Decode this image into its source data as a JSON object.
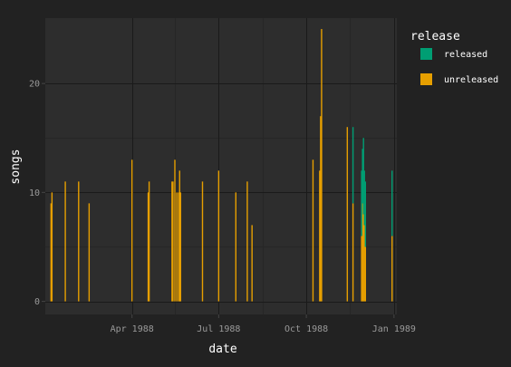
{
  "chart_data": {
    "type": "bar",
    "stacked": true,
    "xlabel": "date",
    "ylabel": "songs",
    "x_axis_type": "date",
    "xlim": [
      "1988-01-01",
      "1989-01-04"
    ],
    "ylim": [
      -1.2,
      26
    ],
    "x_ticks": [
      {
        "date": "1988-04-01",
        "label": "Apr 1988"
      },
      {
        "date": "1988-07-01",
        "label": "Jul 1988"
      },
      {
        "date": "1988-10-01",
        "label": "Oct 1988"
      },
      {
        "date": "1989-01-01",
        "label": "Jan 1989"
      }
    ],
    "y_ticks": [
      {
        "value": 0,
        "label": "0"
      },
      {
        "value": 10,
        "label": "10"
      },
      {
        "value": 20,
        "label": "20"
      }
    ],
    "grid": true,
    "legend": {
      "title": "release",
      "position": "right",
      "entries": [
        {
          "key": "released",
          "label": "released",
          "color": "#009E73"
        },
        {
          "key": "unreleased",
          "label": "unreleased",
          "color": "#E69F00"
        }
      ]
    },
    "colors": {
      "page_background": "#222222",
      "panel_background": "#2d2d2d",
      "grid_major": "#1a1a1a",
      "grid_minor": "#262626",
      "text": "#ffffff",
      "tick_text": "#9a9a9a"
    },
    "series": [
      {
        "name": "unreleased",
        "points": [
          {
            "date": "1988-01-07",
            "value": 9
          },
          {
            "date": "1988-01-08",
            "value": 10
          },
          {
            "date": "1988-01-22",
            "value": 11
          },
          {
            "date": "1988-02-05",
            "value": 11
          },
          {
            "date": "1988-02-16",
            "value": 9
          },
          {
            "date": "1988-04-01",
            "value": 13
          },
          {
            "date": "1988-04-18",
            "value": 10
          },
          {
            "date": "1988-04-19",
            "value": 11
          },
          {
            "date": "1988-05-13",
            "value": 11
          },
          {
            "date": "1988-05-14",
            "value": 11
          },
          {
            "date": "1988-05-16",
            "value": 13
          },
          {
            "date": "1988-05-18",
            "value": 10
          },
          {
            "date": "1988-05-20",
            "value": 10
          },
          {
            "date": "1988-05-21",
            "value": 12
          },
          {
            "date": "1988-05-22",
            "value": 10
          },
          {
            "date": "1988-06-14",
            "value": 11
          },
          {
            "date": "1988-07-01",
            "value": 12
          },
          {
            "date": "1988-07-19",
            "value": 10
          },
          {
            "date": "1988-07-31",
            "value": 11
          },
          {
            "date": "1988-08-05",
            "value": 7
          },
          {
            "date": "1988-10-08",
            "value": 13
          },
          {
            "date": "1988-10-15",
            "value": 12
          },
          {
            "date": "1988-10-16",
            "value": 17
          },
          {
            "date": "1988-10-17",
            "value": 25
          },
          {
            "date": "1988-11-13",
            "value": 16
          },
          {
            "date": "1988-11-19",
            "value": 9
          },
          {
            "date": "1988-11-28",
            "value": 6
          },
          {
            "date": "1988-11-29",
            "value": 9
          },
          {
            "date": "1988-11-30",
            "value": 8
          },
          {
            "date": "1988-12-01",
            "value": 7
          },
          {
            "date": "1988-12-02",
            "value": 5
          },
          {
            "date": "1988-12-30",
            "value": 6
          }
        ]
      },
      {
        "name": "released",
        "points": [
          {
            "date": "1988-11-19",
            "value": 7
          },
          {
            "date": "1988-11-28",
            "value": 6
          },
          {
            "date": "1988-11-29",
            "value": 5
          },
          {
            "date": "1988-11-30",
            "value": 7
          },
          {
            "date": "1988-12-01",
            "value": 5
          },
          {
            "date": "1988-12-02",
            "value": 6
          },
          {
            "date": "1988-12-30",
            "value": 6
          }
        ]
      }
    ]
  }
}
